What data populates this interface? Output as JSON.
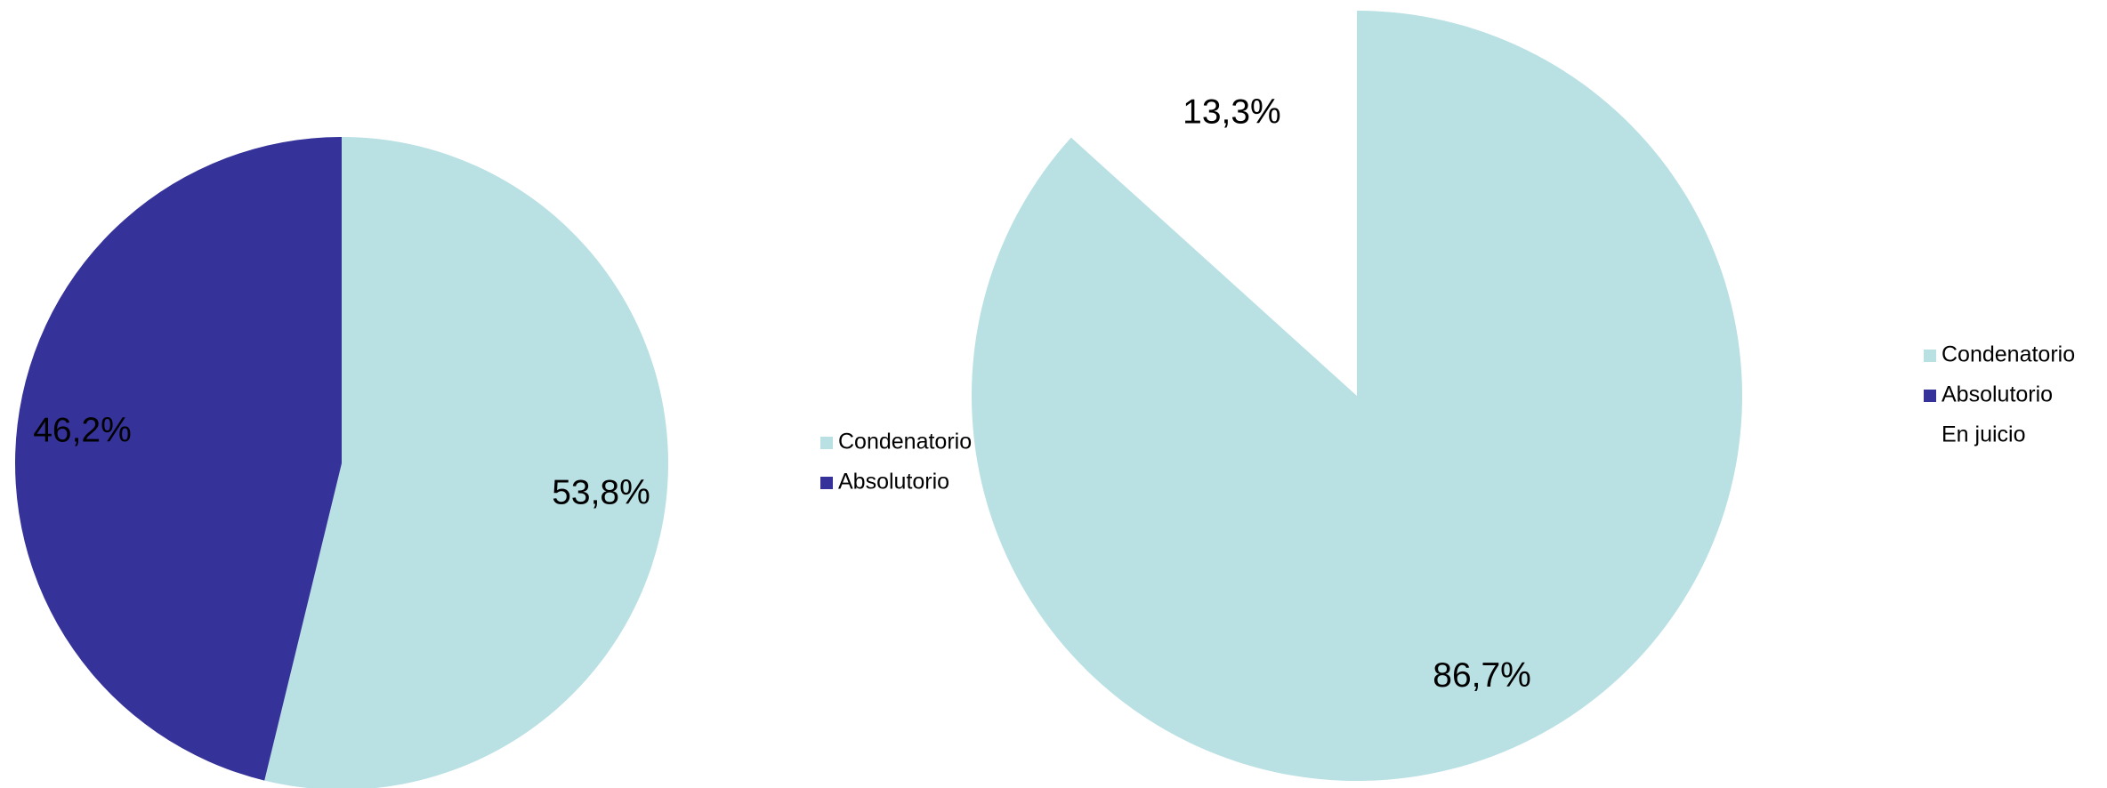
{
  "chart_data": [
    {
      "type": "pie",
      "categories": [
        "Condenatorio",
        "Absolutorio"
      ],
      "values": [
        53.8,
        46.2
      ],
      "value_labels": [
        "53,8%",
        "46,2%"
      ],
      "colors": [
        "#b9e0e3",
        "#353399"
      ],
      "legend": "right"
    },
    {
      "type": "pie",
      "categories": [
        "Condenatorio",
        "Absolutorio",
        "En juicio"
      ],
      "values": [
        86.7,
        0,
        13.3
      ],
      "value_labels": [
        "86,7%",
        null,
        "13,3%"
      ],
      "colors": [
        "#b9e0e3",
        "#353399",
        "#ffffff"
      ],
      "legend": "right"
    }
  ]
}
